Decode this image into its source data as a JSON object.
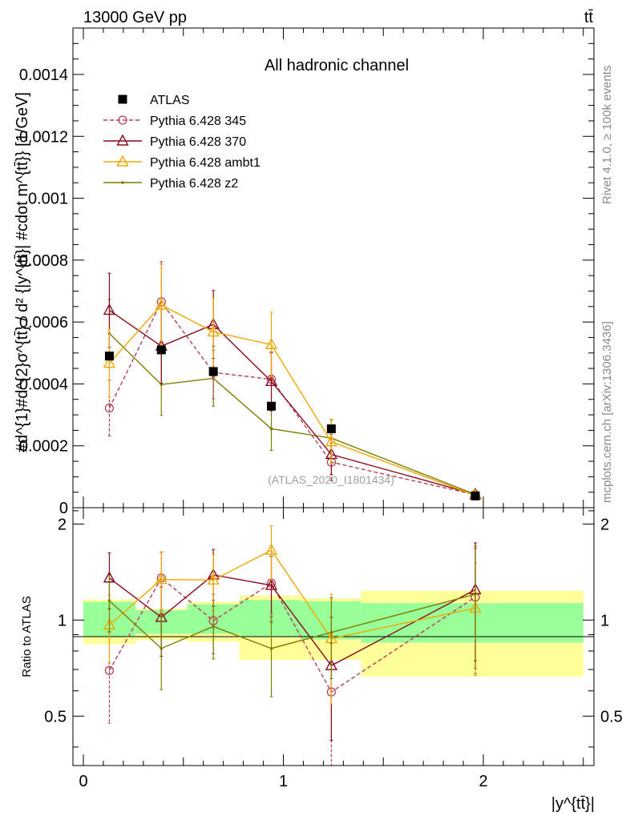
{
  "header": {
    "left": "13000 GeV pp",
    "right": "tt̄"
  },
  "side_text": {
    "rivet": "Rivet 4.1.0, ≥ 100k events",
    "mcplots": "mcplots.cern.ch [arXiv:1306.3436]"
  },
  "chart_data": [
    {
      "type": "scatter",
      "panel": "main",
      "title": "All hadronic channel",
      "watermark": "(ATLAS_2020_I1801434)",
      "ylabel": "#d^{1}#d^{2}σ^{tt̄} / d² {|y^{tt̄}| #cdot m^{tt̄}} [1/GeV]",
      "xlabel": "|y^{tt̄}|",
      "xlim": [
        -0.05,
        2.55
      ],
      "ylim": [
        0,
        0.00155
      ],
      "yticks": [
        0.0002,
        0.0004,
        0.0006,
        0.0008,
        0.001,
        0.0012,
        0.0014
      ],
      "ytick_labels": [
        "0.0002",
        "0.0004",
        "0.0006",
        "0.0008",
        "0.001",
        "0.0012",
        "0.0014"
      ],
      "legend": {
        "placement": "top-left",
        "entries": [
          "ATLAS",
          "Pythia 6.428 345",
          "Pythia 6.428 370",
          "Pythia 6.428 ambt1",
          "Pythia 6.428 z2"
        ]
      },
      "x": [
        0.13,
        0.39,
        0.65,
        0.94,
        1.24,
        1.96
      ],
      "bins": [
        [
          0.0,
          0.26
        ],
        [
          0.26,
          0.52
        ],
        [
          0.52,
          0.78
        ],
        [
          0.78,
          1.09
        ],
        [
          1.09,
          1.39
        ],
        [
          1.39,
          2.5
        ]
      ],
      "series": [
        {
          "name": "ATLAS",
          "color": "#000000",
          "marker": "square",
          "line": "none",
          "values": [
            0.00049,
            0.00051,
            0.00044,
            0.000328,
            0.000255,
            3.8e-05
          ],
          "errors": [
            1e-05,
            1e-05,
            1e-05,
            1e-05,
            1e-05,
            4e-06
          ]
        },
        {
          "name": "Pythia 6.428 345",
          "color": "#b5405a",
          "marker": "circle",
          "line": "dashed",
          "values": [
            0.000322,
            0.000665,
            0.000437,
            0.000415,
            0.000147,
            4.2e-05
          ],
          "errors": [
            9e-05,
            0.00013,
            8.5e-05,
            8.5e-05,
            6e-05,
            1.2e-05
          ]
        },
        {
          "name": "Pythia 6.428 370",
          "color": "#8b0a1e",
          "marker": "triangle",
          "line": "solid",
          "values": [
            0.000638,
            0.000522,
            0.000592,
            0.000408,
            0.000172,
            4.3e-05
          ],
          "errors": [
            0.00012,
            0.00012,
            0.00011,
            9.5e-05,
            6.5e-05,
            1.2e-05
          ]
        },
        {
          "name": "Pythia 6.428 ambt1",
          "color": "#f0a800",
          "marker": "triangle",
          "line": "solid",
          "values": [
            0.000467,
            0.000655,
            0.000568,
            0.000527,
            0.000213,
            4e-05
          ],
          "errors": [
            0.00011,
            0.00013,
            0.00011,
            0.000105,
            7e-05,
            1.2e-05
          ]
        },
        {
          "name": "Pythia 6.428 z2",
          "color": "#7d7d00",
          "marker": "dot",
          "line": "solid",
          "values": [
            0.000563,
            0.000398,
            0.000418,
            0.000255,
            0.000225,
            4.3e-05
          ],
          "errors": [
            0.00011,
            0.0001,
            9e-05,
            7e-05,
            6e-05,
            1.2e-05
          ]
        }
      ]
    },
    {
      "type": "scatter",
      "panel": "ratio",
      "ylabel": "Ratio to ATLAS",
      "xlabel": "|y^{tt̄}|",
      "xlim": [
        -0.05,
        2.55
      ],
      "ylim": [
        0.35,
        2.25
      ],
      "xticks": [
        0,
        1,
        2
      ],
      "xtick_labels": [
        "0",
        "1",
        "2"
      ],
      "yticks": [
        0.5,
        1,
        2
      ],
      "ytick_labels": [
        "0.5",
        "1",
        "2"
      ],
      "bands": {
        "green": [
          [
            0.885,
            1.14
          ],
          [
            0.905,
            1.075
          ],
          [
            0.905,
            1.12
          ],
          [
            0.885,
            1.155
          ],
          [
            0.87,
            1.145
          ],
          [
            0.85,
            1.13
          ]
        ],
        "yellow": [
          [
            0.84,
            1.16
          ],
          [
            0.865,
            1.085
          ],
          [
            0.855,
            1.14
          ],
          [
            0.75,
            1.195
          ],
          [
            0.75,
            1.17
          ],
          [
            0.665,
            1.235
          ]
        ],
        "green_color": "#99ff99",
        "yellow_color": "#ffff99"
      },
      "series": [
        {
          "name": "Pythia 6.428 345",
          "color": "#b5405a",
          "marker": "circle",
          "line": "dashed",
          "values": [
            0.695,
            1.355,
            0.995,
            1.305,
            0.595,
            1.18
          ],
          "errors": [
            0.22,
            0.28,
            0.21,
            0.28,
            0.25,
            0.5
          ]
        },
        {
          "name": "Pythia 6.428 370",
          "color": "#8b0a1e",
          "marker": "triangle",
          "line": "solid",
          "values": [
            1.355,
            1.02,
            1.385,
            1.285,
            0.72,
            1.245
          ],
          "errors": [
            0.27,
            0.25,
            0.28,
            0.3,
            0.3,
            0.5
          ]
        },
        {
          "name": "Pythia 6.428 ambt1",
          "color": "#f0a800",
          "marker": "triangle",
          "line": "solid",
          "values": [
            0.965,
            1.34,
            1.335,
            1.655,
            0.875,
            1.09
          ],
          "errors": [
            0.23,
            0.29,
            0.27,
            0.32,
            0.33,
            0.42
          ]
        },
        {
          "name": "Pythia 6.428 z2",
          "color": "#7d7d00",
          "marker": "dot",
          "line": "solid",
          "values": [
            1.15,
            0.815,
            0.955,
            0.815,
            0.915,
            1.205
          ],
          "errors": [
            0.23,
            0.21,
            0.2,
            0.24,
            0.26,
            0.5
          ]
        }
      ]
    }
  ]
}
